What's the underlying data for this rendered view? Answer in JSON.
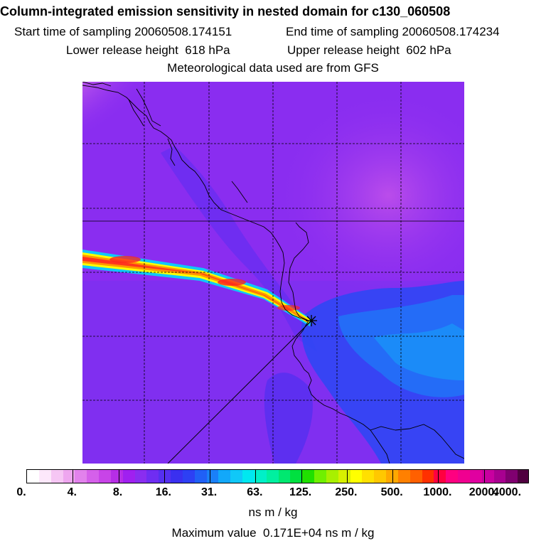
{
  "header": {
    "title": "Column-integrated emission sensitivity in nested domain for c130_060508",
    "start_label": "Start time of sampling",
    "start_value": "20060508.174151",
    "end_label": "End time of sampling",
    "end_value": "20060508.174234",
    "lower_label": "Lower release height",
    "lower_value": "618 hPa",
    "upper_label": "Upper release height",
    "upper_value": "602 hPa",
    "met_line": "Meteorological data used are from GFS"
  },
  "colorbar": {
    "labels": [
      "0.",
      "4.",
      "8.",
      "16.",
      "31.",
      "63.",
      "125.",
      "250.",
      "500.",
      "1000.",
      "2000.",
      "4000."
    ],
    "colors": [
      "#ffffff",
      "#fde8fb",
      "#f6c6f4",
      "#eea6ef",
      "#e282ec",
      "#d560ea",
      "#c844e8",
      "#b62ee6",
      "#a020f0",
      "#8a2df0",
      "#6f2df2",
      "#5530f0",
      "#3a30f0",
      "#2d40f4",
      "#2060f6",
      "#1a80f8",
      "#12a8fa",
      "#10c8f8",
      "#00e8f0",
      "#00f0c8",
      "#00f0a0",
      "#00e870",
      "#00e040",
      "#20e000",
      "#70f000",
      "#a8f000",
      "#d8f000",
      "#ffff00",
      "#ffe000",
      "#ffc800",
      "#ffa800",
      "#ff8000",
      "#ff6000",
      "#ff3000",
      "#ff0040",
      "#ff0080",
      "#f00090",
      "#e000a0",
      "#c800a0",
      "#a80090",
      "#800070",
      "#500040"
    ],
    "units": "ns m / kg"
  },
  "max_value": {
    "label": "Maximum value",
    "value": "0.171E+04 ns m / kg"
  },
  "map": {
    "background_color": "#8a2df0",
    "plume_colors": [
      "#00e8f0",
      "#ffff00",
      "#ff8000",
      "#ff2020"
    ],
    "release_marker": "release-point-asterisk"
  }
}
